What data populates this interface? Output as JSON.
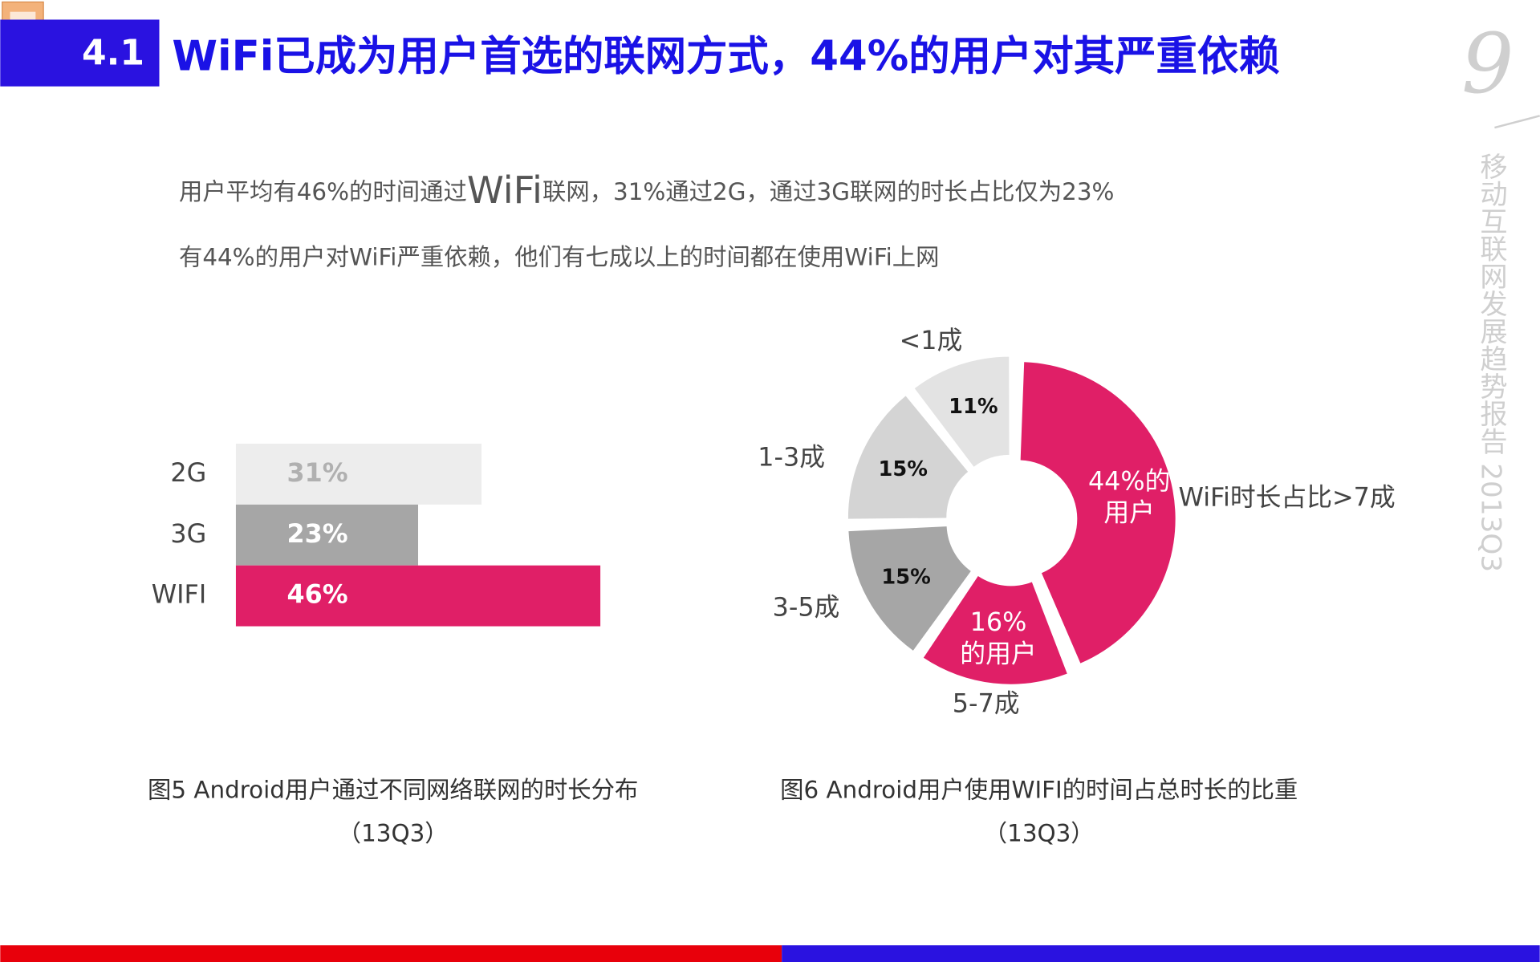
{
  "header": {
    "section": "4.1",
    "title": "WiFi已成为用户首选的联网方式，44%的用户对其严重依赖"
  },
  "page_number": "9",
  "side_text": "移动互联网发展趋势报告 2013Q3",
  "paragraphs": [
    [
      "用户平均有46%的时间通过",
      "WiFi",
      "联网，31%通过2G，通过3G联网的时长占比仅为23%"
    ],
    [
      "有44%的用户对WiFi严重依赖，他们有七成以上的时间都在使用WiFi上网"
    ]
  ],
  "chart_data": [
    {
      "type": "bar",
      "orientation": "horizontal",
      "title": "图5 Android用户通过不同网络联网的时长分布",
      "subtitle": "（13Q3）",
      "categories": [
        "2G",
        "3G",
        "WIFI"
      ],
      "values": [
        31,
        23,
        46
      ],
      "value_labels": [
        "31%",
        "23%",
        "46%"
      ],
      "colors": [
        "#ededed",
        "#a6a6a6",
        "#e01f67"
      ]
    },
    {
      "type": "pie",
      "donut": true,
      "title": "图6 Android用户使用WIFI的时间占总时长的比重",
      "subtitle": "（13Q3）",
      "categories": [
        "WiFi时长占比>7成",
        "5-7成",
        "3-5成",
        "1-3成",
        "<1成"
      ],
      "values": [
        44,
        16,
        15,
        15,
        11
      ],
      "value_labels": [
        [
          "44%的",
          "用户"
        ],
        [
          "16%",
          "的用户"
        ],
        [
          "15%"
        ],
        [
          "15%"
        ],
        [
          "11%"
        ]
      ],
      "colors": [
        "#e01f67",
        "#e01f67",
        "#a6a6a6",
        "#d4d4d4",
        "#e3e3e3"
      ]
    }
  ]
}
